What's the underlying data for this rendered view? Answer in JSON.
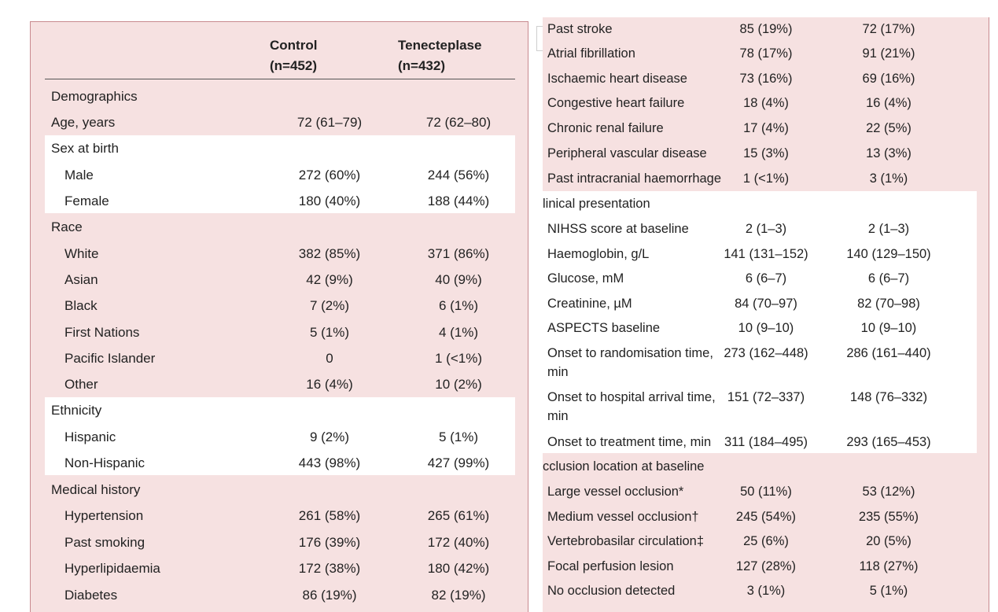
{
  "columns": {
    "control": "Control",
    "control_n": "(n=452)",
    "tenecteplase": "Tenecteplase",
    "tenecteplase_n": "(n=432)"
  },
  "left_rows": [
    {
      "label": "Demographics",
      "control": "",
      "tenecteplase": ""
    },
    {
      "label": "Age, years",
      "control": "72 (61–79)",
      "tenecteplase": "72 (62–80)"
    },
    {
      "label": "Sex at birth",
      "control": "",
      "tenecteplase": ""
    },
    {
      "label": "Male",
      "control": "272 (60%)",
      "tenecteplase": "244 (56%)"
    },
    {
      "label": "Female",
      "control": "180 (40%)",
      "tenecteplase": "188 (44%)"
    },
    {
      "label": "Race",
      "control": "",
      "tenecteplase": ""
    },
    {
      "label": "White",
      "control": "382 (85%)",
      "tenecteplase": "371 (86%)"
    },
    {
      "label": "Asian",
      "control": "42 (9%)",
      "tenecteplase": "40 (9%)"
    },
    {
      "label": "Black",
      "control": "7 (2%)",
      "tenecteplase": "6 (1%)"
    },
    {
      "label": "First Nations",
      "control": "5 (1%)",
      "tenecteplase": "4 (1%)"
    },
    {
      "label": "Pacific Islander",
      "control": "0",
      "tenecteplase": "1 (<1%)"
    },
    {
      "label": "Other",
      "control": "16 (4%)",
      "tenecteplase": "10 (2%)"
    },
    {
      "label": "Ethnicity",
      "control": "",
      "tenecteplase": ""
    },
    {
      "label": "Hispanic",
      "control": "9 (2%)",
      "tenecteplase": "5 (1%)"
    },
    {
      "label": "Non-Hispanic",
      "control": "443 (98%)",
      "tenecteplase": "427 (99%)"
    },
    {
      "label": "Medical history",
      "control": "",
      "tenecteplase": ""
    },
    {
      "label": "Hypertension",
      "control": "261 (58%)",
      "tenecteplase": "265 (61%)"
    },
    {
      "label": "Past smoking",
      "control": "176 (39%)",
      "tenecteplase": "172 (40%)"
    },
    {
      "label": "Hyperlipidaemia",
      "control": "172 (38%)",
      "tenecteplase": "180 (42%)"
    },
    {
      "label": "Diabetes",
      "control": "86 (19%)",
      "tenecteplase": "82 (19%)"
    }
  ],
  "right_rows": [
    {
      "label": "Past stroke",
      "control": "85 (19%)",
      "tenecteplase": "72 (17%)"
    },
    {
      "label": "Atrial fibrillation",
      "control": "78 (17%)",
      "tenecteplase": "91 (21%)"
    },
    {
      "label": "Ischaemic heart disease",
      "control": "73 (16%)",
      "tenecteplase": "69 (16%)"
    },
    {
      "label": "Congestive heart failure",
      "control": "18 (4%)",
      "tenecteplase": "16 (4%)"
    },
    {
      "label": "Chronic renal failure",
      "control": "17 (4%)",
      "tenecteplase": "22 (5%)"
    },
    {
      "label": "Peripheral vascular disease",
      "control": "15 (3%)",
      "tenecteplase": "13 (3%)"
    },
    {
      "label": "Past intracranial haemorrhage",
      "control": "1 (<1%)",
      "tenecteplase": "3 (1%)"
    },
    {
      "label": "linical presentation",
      "control": "",
      "tenecteplase": ""
    },
    {
      "label": "NIHSS score at baseline",
      "control": "2 (1–3)",
      "tenecteplase": "2 (1–3)"
    },
    {
      "label": "Haemoglobin, g/L",
      "control": "141 (131–152)",
      "tenecteplase": "140 (129–150)"
    },
    {
      "label": "Glucose, mM",
      "control": "6 (6–7)",
      "tenecteplase": "6 (6–7)"
    },
    {
      "label": "Creatinine, µM",
      "control": "84 (70–97)",
      "tenecteplase": "82 (70–98)"
    },
    {
      "label": "ASPECTS baseline",
      "control": "10 (9–10)",
      "tenecteplase": "10 (9–10)"
    },
    {
      "label": "Onset to randomisation time, min",
      "control": "273 (162–448)",
      "tenecteplase": "286 (161–440)"
    },
    {
      "label": "Onset to hospital arrival time, min",
      "control": "151 (72–337)",
      "tenecteplase": "148 (76–332)"
    },
    {
      "label": "Onset to treatment time, min",
      "control": "311 (184–495)",
      "tenecteplase": "293 (165–453)"
    },
    {
      "label": "cclusion location at baseline",
      "control": "",
      "tenecteplase": ""
    },
    {
      "label": "Large vessel occlusion*",
      "control": "50 (11%)",
      "tenecteplase": "53 (12%)"
    },
    {
      "label": "Medium vessel occlusion†",
      "control": "245 (54%)",
      "tenecteplase": "235 (55%)"
    },
    {
      "label": "Vertebrobasilar circulation‡",
      "control": "25 (6%)",
      "tenecteplase": "20 (5%)"
    },
    {
      "label": "Focal perfusion lesion",
      "control": "127 (28%)",
      "tenecteplase": "118 (27%)"
    },
    {
      "label": "No occlusion detected",
      "control": "3 (1%)",
      "tenecteplase": "5 (1%)"
    }
  ]
}
